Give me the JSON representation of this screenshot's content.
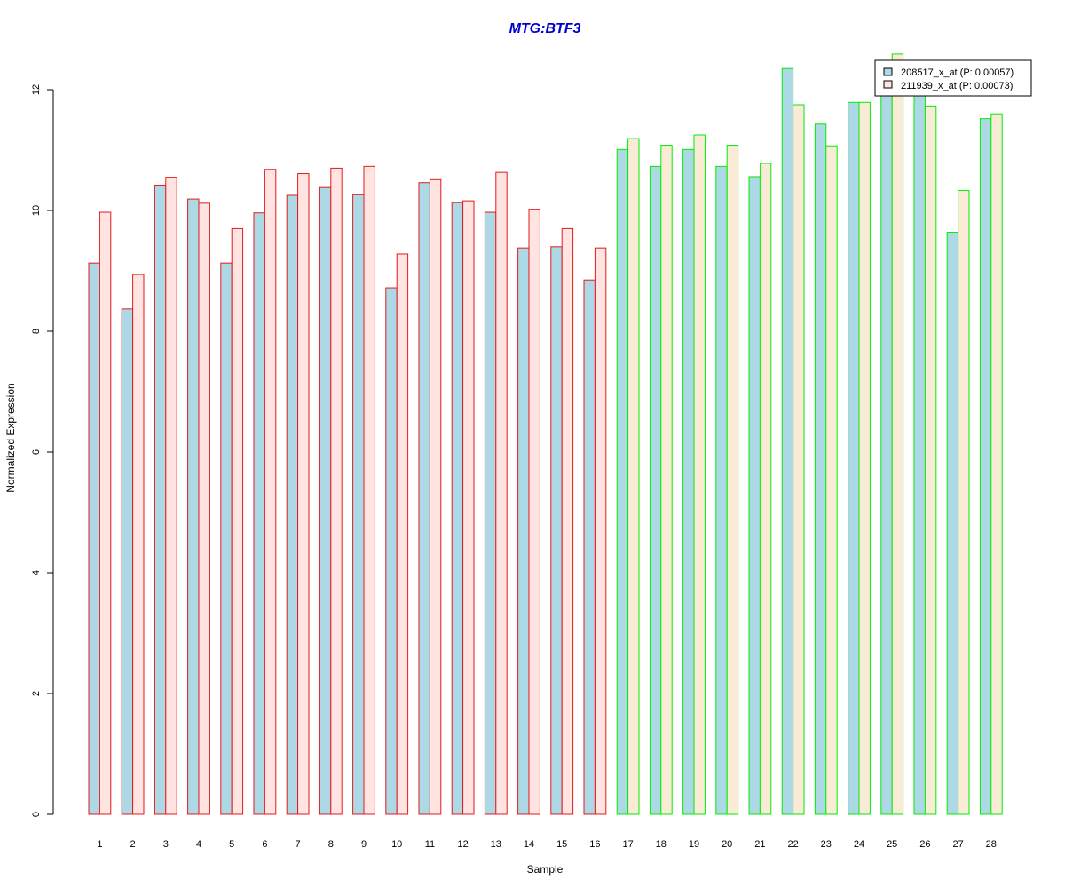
{
  "chart_data": {
    "type": "bar",
    "title": "MTG:BTF3",
    "xlabel": "Sample",
    "ylabel": "Normalized Expression",
    "categories": [
      "1",
      "2",
      "3",
      "4",
      "5",
      "6",
      "7",
      "8",
      "9",
      "10",
      "11",
      "12",
      "13",
      "14",
      "15",
      "16",
      "17",
      "18",
      "19",
      "20",
      "21",
      "22",
      "23",
      "24",
      "25",
      "26",
      "27",
      "28"
    ],
    "ylim": [
      0,
      12.6
    ],
    "yticks": [
      "0",
      "2",
      "4",
      "6",
      "8",
      "10",
      "12"
    ],
    "grid": false,
    "legend_position": "top-right",
    "series": [
      {
        "name": "208517_x_at (P: 0.00057)",
        "fill": "#add8e6",
        "values": [
          9.13,
          8.37,
          10.42,
          10.19,
          9.13,
          9.96,
          10.25,
          10.38,
          10.26,
          8.72,
          10.46,
          10.13,
          9.97,
          9.38,
          9.4,
          8.85,
          11.01,
          10.73,
          11.01,
          10.73,
          10.56,
          12.35,
          11.43,
          11.79,
          12.08,
          12.0,
          9.64,
          11.52
        ]
      },
      {
        "name": "211939_x_at (P: 0.00073)",
        "fill_group1": "#ffe4e1",
        "fill_group2": "#faebd7",
        "values": [
          9.97,
          8.94,
          10.55,
          10.12,
          9.7,
          10.68,
          10.61,
          10.7,
          10.73,
          9.28,
          10.51,
          10.16,
          10.63,
          10.02,
          9.7,
          9.38,
          11.19,
          11.08,
          11.25,
          11.08,
          10.78,
          11.75,
          11.07,
          11.79,
          12.59,
          11.73,
          10.33,
          11.6
        ]
      }
    ],
    "groups": [
      {
        "samples": [
          1,
          16
        ],
        "border": "#e31a1c"
      },
      {
        "samples": [
          17,
          28
        ],
        "border": "#00ee00"
      }
    ],
    "title_color": "#0000cc"
  }
}
